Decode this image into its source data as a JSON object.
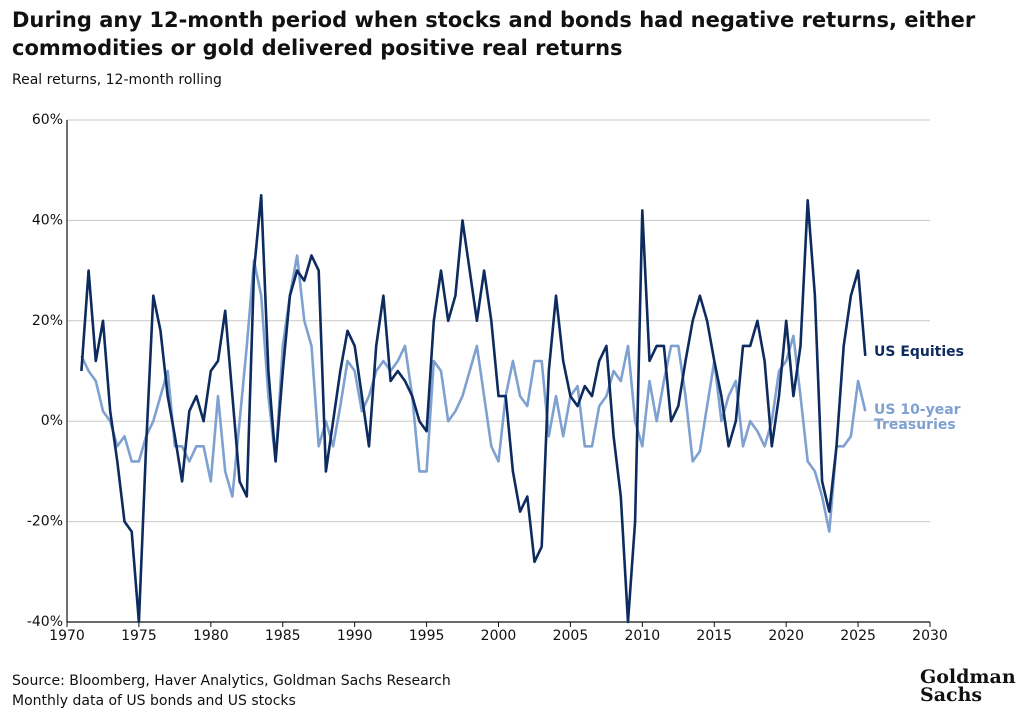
{
  "chart_data": {
    "type": "line",
    "title": "During any 12-month period when stocks and bonds had negative returns, either commodities or gold delivered positive real returns",
    "subtitle": "Real returns, 12-month rolling",
    "source": "Source: Bloomberg, Haver Analytics, Goldman Sachs Research",
    "note": "Monthly data of US bonds and US stocks",
    "logo": "Goldman Sachs",
    "xlim": [
      1970,
      2030
    ],
    "xticks": [
      1970,
      1975,
      1980,
      1985,
      1990,
      1995,
      2000,
      2005,
      2010,
      2015,
      2020,
      2025,
      2030
    ],
    "ylim": [
      -40,
      60
    ],
    "yticks": [
      {
        "value": -40,
        "label": "-40%"
      },
      {
        "value": -20,
        "label": "-20%"
      },
      {
        "value": 0,
        "label": "0%"
      },
      {
        "value": 20,
        "label": "20%"
      },
      {
        "value": 40,
        "label": "40%"
      },
      {
        "value": 60,
        "label": "60%"
      }
    ],
    "grid": true,
    "x": [
      1971.0,
      1971.5,
      1972.0,
      1972.5,
      1973.0,
      1973.5,
      1974.0,
      1974.5,
      1975.0,
      1975.5,
      1976.0,
      1976.5,
      1977.0,
      1977.5,
      1978.0,
      1978.5,
      1979.0,
      1979.5,
      1980.0,
      1980.5,
      1981.0,
      1981.5,
      1982.0,
      1982.5,
      1983.0,
      1983.5,
      1984.0,
      1984.5,
      1985.0,
      1985.5,
      1986.0,
      1986.5,
      1987.0,
      1987.5,
      1988.0,
      1988.5,
      1989.0,
      1989.5,
      1990.0,
      1990.5,
      1991.0,
      1991.5,
      1992.0,
      1992.5,
      1993.0,
      1993.5,
      1994.0,
      1994.5,
      1995.0,
      1995.5,
      1996.0,
      1996.5,
      1997.0,
      1997.5,
      1998.0,
      1998.5,
      1999.0,
      1999.5,
      2000.0,
      2000.5,
      2001.0,
      2001.5,
      2002.0,
      2002.5,
      2003.0,
      2003.5,
      2004.0,
      2004.5,
      2005.0,
      2005.5,
      2006.0,
      2006.5,
      2007.0,
      2007.5,
      2008.0,
      2008.5,
      2009.0,
      2009.5,
      2010.0,
      2010.5,
      2011.0,
      2011.5,
      2012.0,
      2012.5,
      2013.0,
      2013.5,
      2014.0,
      2014.5,
      2015.0,
      2015.5,
      2016.0,
      2016.5,
      2017.0,
      2017.5,
      2018.0,
      2018.5,
      2019.0,
      2019.5,
      2020.0,
      2020.5,
      2021.0,
      2021.5,
      2022.0,
      2022.5,
      2023.0,
      2023.5,
      2024.0,
      2024.5,
      2025.0,
      2025.5
    ],
    "series": [
      {
        "name": "US Equities",
        "color": "#0d2b5e",
        "values": [
          10,
          30,
          12,
          20,
          2,
          -8,
          -20,
          -22,
          -40,
          -5,
          25,
          18,
          5,
          -3,
          -12,
          2,
          5,
          0,
          10,
          12,
          22,
          5,
          -12,
          -15,
          30,
          45,
          10,
          -8,
          10,
          25,
          30,
          28,
          33,
          30,
          -10,
          0,
          10,
          18,
          15,
          5,
          -5,
          15,
          25,
          8,
          10,
          8,
          5,
          0,
          -2,
          20,
          30,
          20,
          25,
          40,
          30,
          20,
          30,
          20,
          5,
          5,
          -10,
          -18,
          -15,
          -28,
          -25,
          10,
          25,
          12,
          5,
          3,
          7,
          5,
          12,
          15,
          -3,
          -15,
          -40,
          -20,
          42,
          12,
          15,
          15,
          0,
          3,
          12,
          20,
          25,
          20,
          12,
          5,
          -5,
          0,
          15,
          15,
          20,
          12,
          -5,
          5,
          20,
          5,
          15,
          44,
          25,
          -12,
          -18,
          -5,
          15,
          25,
          30,
          13
        ]
      },
      {
        "name": "US 10-year Treasuries",
        "color": "#7ea1d0",
        "values": [
          13,
          10,
          8,
          2,
          0,
          -5,
          -3,
          -8,
          -8,
          -3,
          0,
          5,
          10,
          -5,
          -5,
          -8,
          -5,
          -5,
          -12,
          5,
          -10,
          -15,
          0,
          15,
          32,
          25,
          5,
          -8,
          15,
          25,
          33,
          20,
          15,
          -5,
          0,
          -5,
          3,
          12,
          10,
          2,
          5,
          10,
          12,
          10,
          12,
          15,
          5,
          -10,
          -10,
          12,
          10,
          0,
          2,
          5,
          10,
          15,
          5,
          -5,
          -8,
          5,
          12,
          5,
          3,
          12,
          12,
          -3,
          5,
          -3,
          5,
          7,
          -5,
          -5,
          3,
          5,
          10,
          8,
          15,
          0,
          -5,
          8,
          0,
          8,
          15,
          15,
          5,
          -8,
          -6,
          3,
          12,
          0,
          5,
          8,
          -5,
          0,
          -2,
          -5,
          0,
          10,
          12,
          17,
          5,
          -8,
          -10,
          -15,
          -22,
          -5,
          -5,
          -3,
          8,
          2
        ]
      }
    ]
  }
}
